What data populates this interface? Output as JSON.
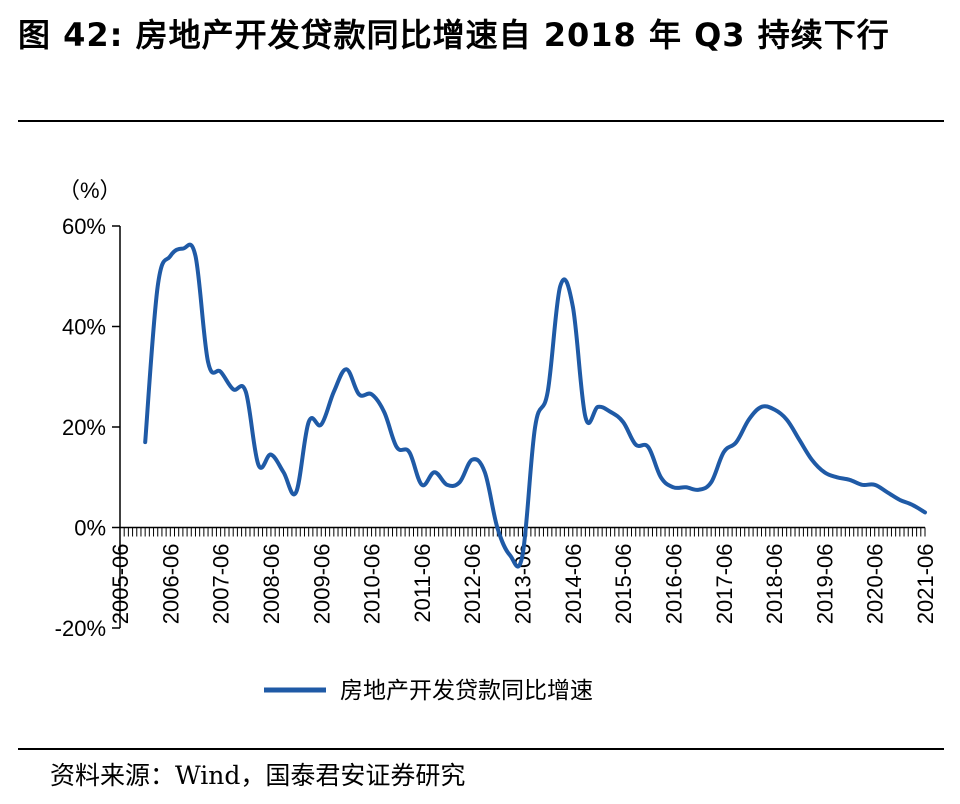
{
  "title": "图 42: 房地产开发贷款同比增速自 2018 年 Q3 持续下行",
  "source": "资料来源：Wind，国泰君安证券研究",
  "chart_data": {
    "type": "line",
    "ylabel": "（%）",
    "ylim": [
      -20,
      60
    ],
    "yticks": [
      -20,
      0,
      20,
      40,
      60
    ],
    "ytick_labels": [
      "-20%",
      "0%",
      "20%",
      "40%",
      "60%"
    ],
    "xlim": [
      "2005-06",
      "2021-06"
    ],
    "xtick_labels": [
      "2005-06",
      "2006-06",
      "2007-06",
      "2008-06",
      "2009-06",
      "2010-06",
      "2011-06",
      "2012-06",
      "2013-06",
      "2014-06",
      "2015-06",
      "2016-06",
      "2017-06",
      "2018-06",
      "2019-06",
      "2020-06",
      "2021-06"
    ],
    "legend": "bottom",
    "series": [
      {
        "name": "房地产开发贷款同比增速",
        "color": "#1f5aa6",
        "x": [
          "2005-12",
          "2006-03",
          "2006-06",
          "2006-09",
          "2006-12",
          "2007-03",
          "2007-06",
          "2007-09",
          "2007-12",
          "2008-03",
          "2008-06",
          "2008-09",
          "2008-12",
          "2009-03",
          "2009-06",
          "2009-09",
          "2009-12",
          "2010-03",
          "2010-06",
          "2010-09",
          "2010-12",
          "2011-03",
          "2011-06",
          "2011-09",
          "2011-12",
          "2012-03",
          "2012-06",
          "2012-09",
          "2012-12",
          "2013-03",
          "2013-06",
          "2013-09",
          "2013-12",
          "2014-03",
          "2014-06",
          "2014-09",
          "2014-12",
          "2015-03",
          "2015-06",
          "2015-09",
          "2015-12",
          "2016-03",
          "2016-06",
          "2016-09",
          "2016-12",
          "2017-03",
          "2017-06",
          "2017-09",
          "2017-12",
          "2018-03",
          "2018-06",
          "2018-09",
          "2018-12",
          "2019-03",
          "2019-06",
          "2019-09",
          "2019-12",
          "2020-03",
          "2020-06",
          "2020-09",
          "2020-12",
          "2021-03",
          "2021-06"
        ],
        "y": [
          17,
          48,
          54,
          55.5,
          54,
          33,
          31,
          27.5,
          27,
          12.5,
          14.5,
          11,
          7,
          21,
          20.5,
          27,
          31.5,
          26.5,
          26.5,
          23,
          16,
          15,
          8.5,
          11,
          8.5,
          9,
          13.5,
          11,
          0,
          -5.5,
          -5.5,
          20,
          27,
          48,
          44,
          22,
          24,
          23,
          21,
          16.5,
          16,
          10,
          8,
          8,
          7.5,
          9,
          15,
          17,
          21.5,
          24,
          23.5,
          21.5,
          17.5,
          13.5,
          11,
          10,
          9.5,
          8.5,
          8.5,
          7,
          5.5,
          4.5,
          3
        ]
      }
    ]
  }
}
